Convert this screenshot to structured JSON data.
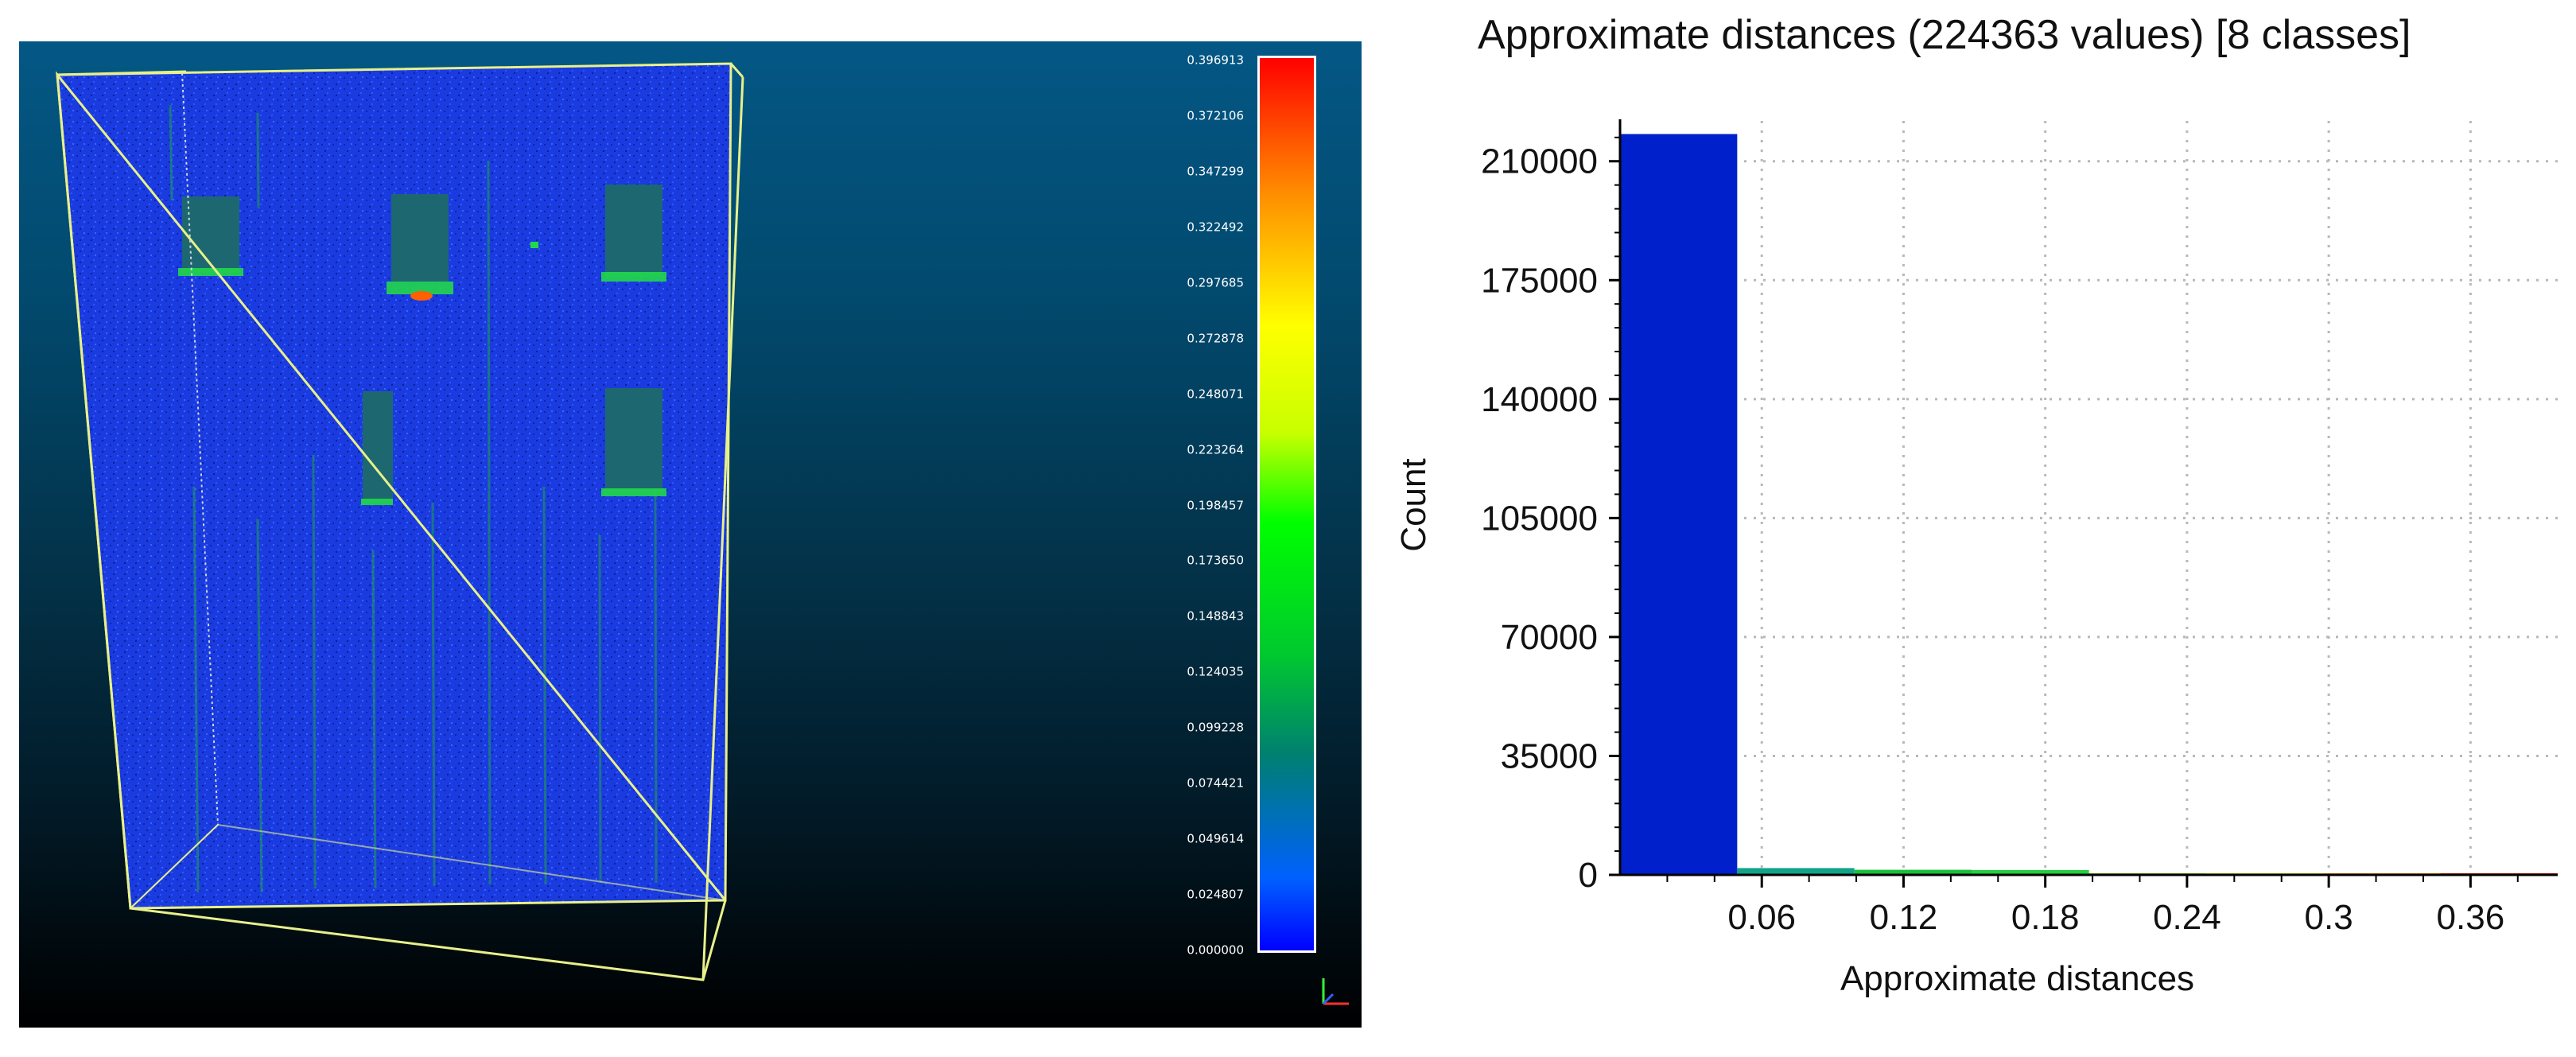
{
  "viewer": {
    "background": "#024a6f",
    "bounding_box_color": "#e8f08a",
    "point_color": "#1a3be0",
    "scalar_bar": {
      "labels": [
        "0.396913",
        "0.372106",
        "0.347299",
        "0.322492",
        "0.297685",
        "0.272878",
        "0.248071",
        "0.223264",
        "0.198457",
        "0.173650",
        "0.148843",
        "0.124035",
        "0.099228",
        "0.074421",
        "0.049614",
        "0.024807",
        "0.000000"
      ],
      "colors": [
        "#0000ff",
        "#008070",
        "#00ff00",
        "#ffff00",
        "#ff8c00",
        "#ff0000"
      ]
    },
    "axes_icon": "axes-triad-icon"
  },
  "histogram": {
    "title": "Approximate distances (224363 values) [8 classes]"
  },
  "chart_data": {
    "type": "bar",
    "title": "Approximate distances (224363 values) [8 classes]",
    "xlabel": "Approximate distances",
    "ylabel": "Count",
    "xlim": [
      0,
      0.396913
    ],
    "ylim": [
      0,
      220000
    ],
    "x_ticks": [
      "0.06",
      "0.12",
      "0.18",
      "0.24",
      "0.3",
      "0.36"
    ],
    "y_ticks": [
      "0",
      "35000",
      "70000",
      "105000",
      "140000",
      "175000",
      "210000"
    ],
    "bins": [
      {
        "start": 0.0,
        "end": 0.0496,
        "value": 218000,
        "color": "#0020cc"
      },
      {
        "start": 0.0496,
        "end": 0.0992,
        "value": 2000,
        "color": "#13a388"
      },
      {
        "start": 0.0992,
        "end": 0.1488,
        "value": 1500,
        "color": "#1ac03a"
      },
      {
        "start": 0.1488,
        "end": 0.1985,
        "value": 1400,
        "color": "#22d040"
      },
      {
        "start": 0.1985,
        "end": 0.2481,
        "value": 250,
        "color": "#80d000"
      },
      {
        "start": 0.2481,
        "end": 0.2977,
        "value": 100,
        "color": "#c8e000"
      },
      {
        "start": 0.2977,
        "end": 0.3473,
        "value": 60,
        "color": "#ff9000"
      },
      {
        "start": 0.3473,
        "end": 0.3969,
        "value": 40,
        "color": "#ff2000"
      }
    ],
    "grid": true,
    "grid_style": "dotted"
  }
}
